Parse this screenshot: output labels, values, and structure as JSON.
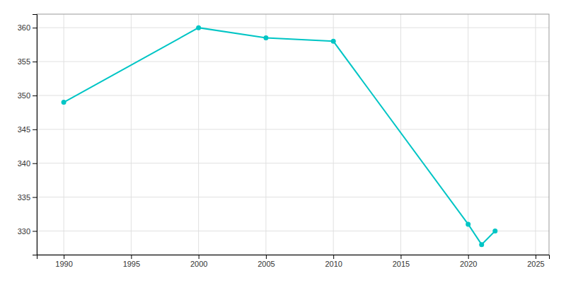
{
  "chart_data": {
    "type": "line",
    "x": [
      1990,
      2000,
      2005,
      2010,
      2020,
      2021,
      2022
    ],
    "values": [
      349,
      360,
      358.5,
      358,
      331,
      328,
      330
    ],
    "color": "#00C5C5",
    "marker": "circle",
    "xlim": [
      1988,
      2026
    ],
    "ylim": [
      326.5,
      362
    ],
    "xticks": [
      1990,
      1995,
      2000,
      2005,
      2010,
      2015,
      2020,
      2025
    ],
    "yticks": [
      330,
      335,
      340,
      345,
      350,
      355,
      360
    ],
    "grid": true
  }
}
